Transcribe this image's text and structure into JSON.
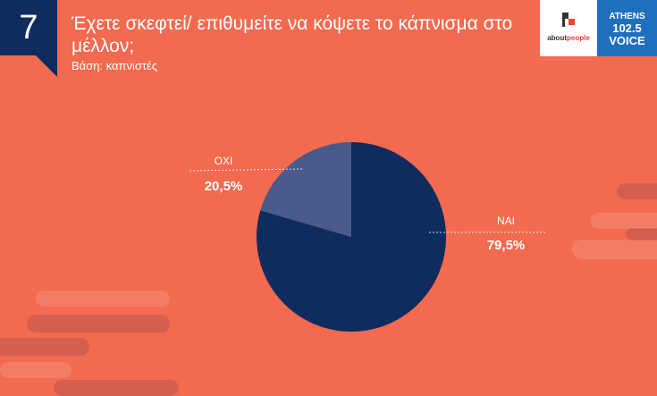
{
  "badge_number": "7",
  "title": "Έχετε σκεφτεί/ επιθυμείτε να κόψετε το κάπνισμα στο μέλλον;",
  "subtitle": "Βάση: καπνιστές",
  "logos": {
    "aboutpeople_prefix": "about",
    "aboutpeople_suffix": "people",
    "athens_line1": "ATHENS",
    "athens_line2": "102.5",
    "athens_line3": "VOICE"
  },
  "colors": {
    "background": "#F26A4F",
    "badge": "#0F2C5E",
    "nai": "#0F2C5E",
    "oxi": "#4A5A8A"
  },
  "chart_data": {
    "type": "pie",
    "slices": [
      {
        "label": "ΝΑΙ",
        "value": 79.5,
        "display": "79,5%",
        "color": "#0F2C5E"
      },
      {
        "label": "ΟΧΙ",
        "value": 20.5,
        "display": "20,5%",
        "color": "#4A5A8A"
      }
    ]
  }
}
